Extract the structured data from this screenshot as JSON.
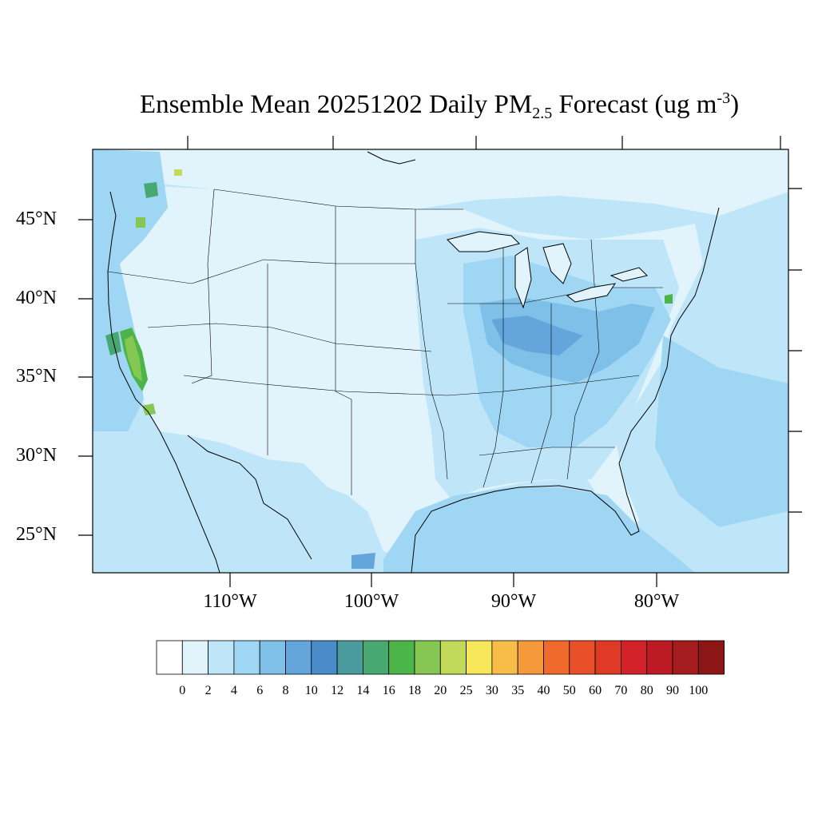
{
  "title": {
    "prefix": "Ensemble Mean 20251202 Daily PM",
    "subscript": "2.5",
    "suffix": " Forecast (ug m",
    "superscript": "-3",
    "close": ")"
  },
  "lat_labels": [
    "45°N",
    "40°N",
    "35°N",
    "30°N",
    "25°N"
  ],
  "lon_labels": [
    "110°W",
    "100°W",
    "90°W",
    "80°W"
  ],
  "colorbar": {
    "labels": [
      "0",
      "2",
      "4",
      "6",
      "8",
      "10",
      "12",
      "14",
      "16",
      "18",
      "20",
      "25",
      "30",
      "35",
      "40",
      "50",
      "60",
      "70",
      "80",
      "90",
      "100"
    ],
    "colors": [
      "#ffffff",
      "#e1f3fb",
      "#bfe6f8",
      "#9ed6f3",
      "#7fc0e8",
      "#64a6dc",
      "#4a8cc9",
      "#4a9b9e",
      "#47a872",
      "#4cb54a",
      "#86c652",
      "#c2d95a",
      "#f6e75a",
      "#f7bd48",
      "#f59a3a",
      "#f06a2c",
      "#e9502a",
      "#df3a26",
      "#d22128",
      "#bd1b24",
      "#a51c1e",
      "#8c1616"
    ]
  },
  "land_color": "#e1f3fb",
  "ocean_color": "#bfe6f8"
}
